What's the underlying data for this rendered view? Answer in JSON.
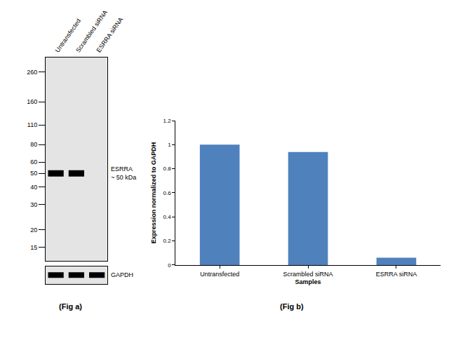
{
  "chart_data": {
    "type": "bar",
    "categories": [
      "Untransfected",
      "Scrambled siRNA",
      "ESRRA siRNA"
    ],
    "values": [
      1,
      0.94,
      0.06
    ],
    "color": "#4f81bd",
    "xlabel": "Samples",
    "ylabel": "Expression normalized to GAPDH",
    "ylim": [
      0,
      1.2
    ],
    "yticks": [
      0,
      0.2,
      0.4,
      0.6,
      0.8,
      1,
      1.2
    ],
    "grid": false,
    "caption": "(Fig b)"
  },
  "blot": {
    "lanes": [
      "Untransfected",
      "Scrambled siRNA",
      "ESRRA siRNA"
    ],
    "markers": [
      260,
      160,
      110,
      80,
      60,
      50,
      40,
      30,
      20,
      15
    ],
    "ylim": [
      12,
      330
    ],
    "target": {
      "label": [
        "ESRRA",
        "~ 50 kDa"
      ],
      "kda": 50,
      "present": [
        true,
        true,
        false
      ]
    },
    "loading_control": {
      "label": "GAPDH",
      "present": [
        true,
        true,
        true
      ]
    },
    "caption": "(Fig a)"
  }
}
